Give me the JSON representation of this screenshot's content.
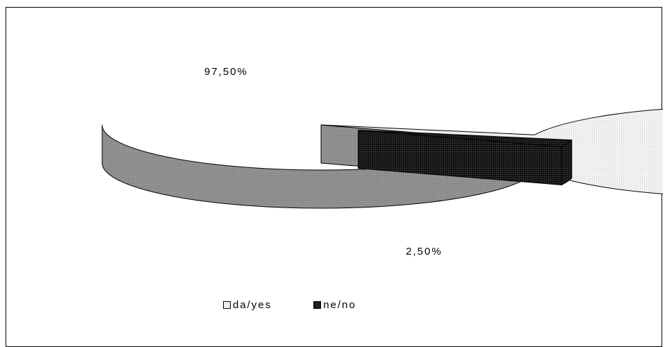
{
  "chart_data": {
    "type": "pie",
    "style": "3d-exploded",
    "categories": [
      "da/yes",
      "ne/no"
    ],
    "values": [
      97.5,
      2.5
    ],
    "value_labels": [
      "97,50%",
      "2,50%"
    ],
    "colors": {
      "da_yes_top": "#efefef",
      "da_yes_side": "#8c8c8c",
      "ne_no_top": "#1e1e1e",
      "ne_no_side": "#0c0c0c"
    },
    "legend": {
      "position": "bottom",
      "items": [
        {
          "label": "da/yes",
          "color": "#efefef"
        },
        {
          "label": "ne/no",
          "color": "#1e1e1e"
        }
      ]
    }
  }
}
